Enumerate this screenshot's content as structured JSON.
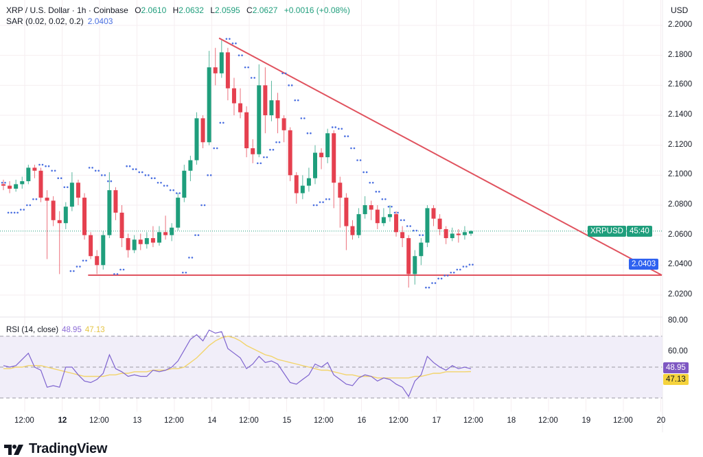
{
  "header": {
    "symbol_title": "XRP / U.S. Dollar · 1h · Coinbase",
    "open_label": "O",
    "open": "2.0610",
    "high_label": "H",
    "high": "2.0632",
    "low_label": "L",
    "low": "2.0595",
    "close_label": "C",
    "close": "2.0627",
    "change": "+0.0016 (+0.08%)",
    "sar_title": "SAR (0.02, 0.02, 0.2)",
    "sar_value": "2.0403",
    "currency": "USD"
  },
  "rsi_header": {
    "title": "RSI (14, close)",
    "rsi_value": "48.95",
    "ma_value": "47.13"
  },
  "tags": {
    "symbol": "XRPUSD",
    "countdown": "45:40",
    "sar": "2.0403",
    "rsi": "48.95",
    "rsi_ma": "47.13"
  },
  "colors": {
    "up": "#1f9e7c",
    "down": "#e5404f",
    "sar": "#4a6fe0",
    "trendline": "#e0525e",
    "rsi": "#7e63cf",
    "rsi_ma": "#f2d46b",
    "rsi_band": "#f1eef9",
    "last_price": "#1f9e7c"
  },
  "branding": {
    "name": "TradingView"
  },
  "chart_data": {
    "type": "candlestick",
    "price_axis": {
      "ticks": [
        "2.2000",
        "2.1800",
        "2.1600",
        "2.1400",
        "2.1200",
        "2.1000",
        "2.0800",
        "2.0600",
        "2.0400",
        "2.0200"
      ],
      "range": [
        2.02,
        2.2
      ]
    },
    "time_axis": {
      "ticks": [
        {
          "label": "12:00",
          "bold": false
        },
        {
          "label": "12",
          "bold": true
        },
        {
          "label": "12:00",
          "bold": false
        },
        {
          "label": "13",
          "bold": false
        },
        {
          "label": "12:00",
          "bold": false
        },
        {
          "label": "14",
          "bold": false
        },
        {
          "label": "12:00",
          "bold": false
        },
        {
          "label": "15",
          "bold": false
        },
        {
          "label": "12:00",
          "bold": false
        },
        {
          "label": "16",
          "bold": false
        },
        {
          "label": "12:00",
          "bold": false
        },
        {
          "label": "17",
          "bold": false
        },
        {
          "label": "12:00",
          "bold": false
        },
        {
          "label": "18",
          "bold": false
        },
        {
          "label": "12:00",
          "bold": false
        },
        {
          "label": "19",
          "bold": false
        },
        {
          "label": "12:00",
          "bold": false
        },
        {
          "label": "20",
          "bold": false
        }
      ]
    },
    "last_price": 2.0627,
    "candles_ohlc": [
      [
        2.094,
        2.097,
        2.09,
        2.093
      ],
      [
        2.093,
        2.096,
        2.088,
        2.091
      ],
      [
        2.091,
        2.097,
        2.089,
        2.094
      ],
      [
        2.094,
        2.099,
        2.091,
        2.096
      ],
      [
        2.096,
        2.107,
        2.094,
        2.105
      ],
      [
        2.105,
        2.107,
        2.098,
        2.103
      ],
      [
        2.103,
        2.105,
        2.082,
        2.085
      ],
      [
        2.085,
        2.09,
        2.044,
        2.083
      ],
      [
        2.083,
        2.086,
        2.066,
        2.07
      ],
      [
        2.07,
        2.076,
        2.034,
        2.068
      ],
      [
        2.068,
        2.082,
        2.064,
        2.079
      ],
      [
        2.079,
        2.102,
        2.076,
        2.095
      ],
      [
        2.095,
        2.097,
        2.08,
        2.085
      ],
      [
        2.085,
        2.088,
        2.057,
        2.06
      ],
      [
        2.06,
        2.062,
        2.044,
        2.046
      ],
      [
        2.046,
        2.05,
        2.034,
        2.04
      ],
      [
        2.04,
        2.063,
        2.037,
        2.06
      ],
      [
        2.06,
        2.102,
        2.058,
        2.09
      ],
      [
        2.09,
        2.092,
        2.07,
        2.075
      ],
      [
        2.075,
        2.08,
        2.052,
        2.058
      ],
      [
        2.058,
        2.061,
        2.045,
        2.05
      ],
      [
        2.05,
        2.06,
        2.048,
        2.057
      ],
      [
        2.057,
        2.061,
        2.05,
        2.054
      ],
      [
        2.054,
        2.062,
        2.051,
        2.058
      ],
      [
        2.058,
        2.066,
        2.052,
        2.055
      ],
      [
        2.055,
        2.066,
        2.053,
        2.062
      ],
      [
        2.062,
        2.073,
        2.057,
        2.06
      ],
      [
        2.06,
        2.068,
        2.056,
        2.065
      ],
      [
        2.065,
        2.088,
        2.063,
        2.085
      ],
      [
        2.085,
        2.107,
        2.082,
        2.103
      ],
      [
        2.103,
        2.113,
        2.096,
        2.11
      ],
      [
        2.11,
        2.142,
        2.107,
        2.138
      ],
      [
        2.138,
        2.14,
        2.118,
        2.122
      ],
      [
        2.122,
        2.183,
        2.12,
        2.172
      ],
      [
        2.172,
        2.185,
        2.16,
        2.168
      ],
      [
        2.168,
        2.19,
        2.165,
        2.182
      ],
      [
        2.182,
        2.185,
        2.15,
        2.158
      ],
      [
        2.158,
        2.165,
        2.14,
        2.148
      ],
      [
        2.148,
        2.158,
        2.138,
        2.142
      ],
      [
        2.142,
        2.146,
        2.112,
        2.118
      ],
      [
        2.118,
        2.124,
        2.108,
        2.114
      ],
      [
        2.114,
        2.174,
        2.112,
        2.16
      ],
      [
        2.16,
        2.172,
        2.128,
        2.14
      ],
      [
        2.14,
        2.163,
        2.136,
        2.15
      ],
      [
        2.15,
        2.155,
        2.128,
        2.138
      ],
      [
        2.138,
        2.14,
        2.122,
        2.13
      ],
      [
        2.13,
        2.132,
        2.096,
        2.1
      ],
      [
        2.1,
        2.102,
        2.081,
        2.088
      ],
      [
        2.088,
        2.1,
        2.084,
        2.093
      ],
      [
        2.093,
        2.105,
        2.089,
        2.098
      ],
      [
        2.098,
        2.12,
        2.094,
        2.115
      ],
      [
        2.115,
        2.118,
        2.104,
        2.112
      ],
      [
        2.112,
        2.131,
        2.108,
        2.128
      ],
      [
        2.128,
        2.13,
        2.078,
        2.095
      ],
      [
        2.095,
        2.099,
        2.065,
        2.085
      ],
      [
        2.085,
        2.088,
        2.05,
        2.066
      ],
      [
        2.066,
        2.07,
        2.057,
        2.06
      ],
      [
        2.06,
        2.078,
        2.058,
        2.074
      ],
      [
        2.074,
        2.086,
        2.071,
        2.08
      ],
      [
        2.08,
        2.083,
        2.07,
        2.077
      ],
      [
        2.077,
        2.08,
        2.064,
        2.068
      ],
      [
        2.068,
        2.078,
        2.066,
        2.072
      ],
      [
        2.072,
        2.08,
        2.069,
        2.074
      ],
      [
        2.074,
        2.076,
        2.059,
        2.062
      ],
      [
        2.062,
        2.066,
        2.052,
        2.058
      ],
      [
        2.058,
        2.06,
        2.025,
        2.034
      ],
      [
        2.034,
        2.05,
        2.027,
        2.046
      ],
      [
        2.046,
        2.058,
        2.04,
        2.055
      ],
      [
        2.055,
        2.08,
        2.052,
        2.078
      ],
      [
        2.078,
        2.08,
        2.066,
        2.071
      ],
      [
        2.071,
        2.074,
        2.06,
        2.064
      ],
      [
        2.064,
        2.066,
        2.054,
        2.058
      ],
      [
        2.058,
        2.065,
        2.056,
        2.061
      ],
      [
        2.061,
        2.064,
        2.055,
        2.06
      ],
      [
        2.06,
        2.066,
        2.057,
        2.062
      ],
      [
        2.061,
        2.0632,
        2.0595,
        2.0627
      ]
    ],
    "sar": [
      2.095,
      2.075,
      2.075,
      2.077,
      2.08,
      2.084,
      2.107,
      2.106,
      2.103,
      2.098,
      2.092,
      2.036,
      2.039,
      2.043,
      2.105,
      2.103,
      2.1,
      2.096,
      2.034,
      2.037,
      2.106,
      2.104,
      2.102,
      2.1,
      2.098,
      2.095,
      2.093,
      2.09,
      2.088,
      2.035,
      2.045,
      2.06,
      2.08,
      2.1,
      2.118,
      2.135,
      2.191,
      2.188,
      2.18,
      2.172,
      2.165,
      2.108,
      2.112,
      2.117,
      2.122,
      2.168,
      2.16,
      2.15,
      2.138,
      2.128,
      2.08,
      2.082,
      2.084,
      2.132,
      2.131,
      2.126,
      2.118,
      2.11,
      2.102,
      2.095,
      2.089,
      2.084,
      2.079,
      2.075,
      2.07,
      2.066,
      2.063,
      2.06,
      2.025,
      2.028,
      2.031,
      2.033,
      2.035,
      2.037,
      2.039,
      2.0403
    ],
    "trendlines": [
      {
        "from": {
          "day": 14,
          "hour": 2,
          "price": 2.1915
        },
        "to": {
          "day": 20,
          "hour": 0,
          "price": 2.0333
        }
      },
      {
        "from": {
          "day": 12,
          "hour": 8,
          "price": 2.0333
        },
        "to": {
          "day": 20,
          "hour": 0,
          "price": 2.0333
        }
      }
    ],
    "rsi": {
      "axis_ticks": [
        "80.00",
        "60.00"
      ],
      "levels": [
        70,
        50,
        30
      ],
      "values": [
        51,
        50,
        51,
        55,
        59,
        50,
        48,
        37,
        38,
        37,
        50,
        50,
        45,
        41,
        40,
        42,
        46,
        58,
        49,
        47,
        44,
        45,
        44,
        44,
        48,
        47,
        48,
        50,
        54,
        61,
        68,
        71,
        67,
        74,
        72,
        73,
        62,
        59,
        56,
        49,
        52,
        57,
        53,
        54,
        52,
        46,
        40,
        39,
        42,
        45,
        52,
        50,
        53,
        45,
        42,
        39,
        38,
        43,
        45,
        44,
        41,
        43,
        42,
        39,
        37,
        31,
        41,
        45,
        57,
        53,
        50,
        48,
        51,
        49,
        50,
        48.95
      ],
      "ma": [
        49,
        49,
        50,
        50,
        51,
        51,
        51,
        50,
        49,
        48,
        47,
        46,
        45,
        44,
        44,
        44,
        44,
        45,
        45,
        46,
        46,
        47,
        47,
        47,
        48,
        48,
        48,
        49,
        49,
        50,
        53,
        56,
        60,
        64,
        67,
        69,
        70,
        69,
        67,
        64,
        62,
        60,
        58,
        57,
        55,
        54,
        53,
        52,
        51,
        50,
        49,
        48,
        48,
        47,
        46,
        45,
        45,
        44,
        44,
        44,
        43,
        43,
        43,
        43,
        43,
        43,
        44,
        44,
        45,
        46,
        46,
        47,
        47,
        47,
        47,
        47.13
      ]
    }
  }
}
